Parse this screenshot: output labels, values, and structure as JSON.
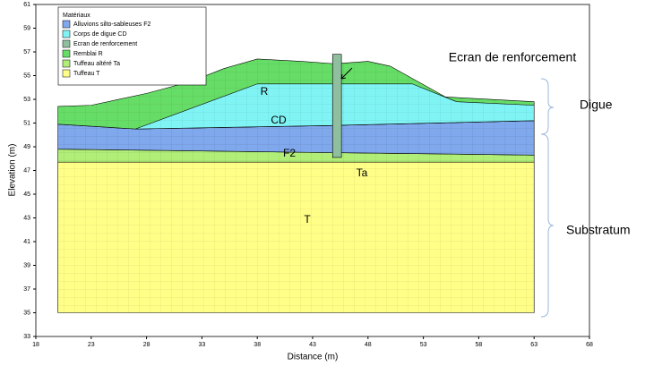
{
  "diagram": {
    "legend_title": "Matériaux",
    "legend": [
      {
        "label": "Alluvions silto-sableuses F2",
        "color": "#80a8ec"
      },
      {
        "label": "Corps de digue CD",
        "color": "#80f4f4"
      },
      {
        "label": "Ecran de renforcement",
        "color": "#8fbf9f"
      },
      {
        "label": "Remblai R",
        "color": "#66dd66"
      },
      {
        "label": "Tuffeau altéré Ta",
        "color": "#b0ee77"
      },
      {
        "label": "Tuffeau T",
        "color": "#ffff88"
      }
    ],
    "xlabel": "Distance (m)",
    "ylabel": "Elevation (m)",
    "xlim": [
      18,
      68
    ],
    "ylim": [
      33,
      61
    ],
    "xticks": [
      18,
      23,
      28,
      33,
      38,
      43,
      48,
      53,
      58,
      63,
      68
    ],
    "yticks": [
      33,
      35,
      37,
      39,
      41,
      43,
      45,
      47,
      49,
      51,
      53,
      55,
      57,
      59,
      61
    ],
    "layers": [
      {
        "legend": 5,
        "x": [
          20,
          63,
          63,
          20
        ],
        "y": [
          35,
          35,
          47.7,
          47.7
        ]
      },
      {
        "legend": 4,
        "x": [
          20,
          63,
          63,
          45,
          20
        ],
        "y": [
          47.7,
          47.7,
          48.3,
          48.5,
          48.8
        ]
      },
      {
        "legend": 0,
        "x": [
          20,
          45,
          63,
          63,
          45,
          27,
          20
        ],
        "y": [
          48.8,
          48.5,
          48.3,
          51.2,
          50.8,
          50.5,
          50.9
        ]
      },
      {
        "legend": 3,
        "x": [
          20,
          23,
          28,
          32,
          35,
          38,
          42,
          45,
          48,
          50,
          55,
          63,
          63,
          45,
          27,
          20
        ],
        "y": [
          52.4,
          52.5,
          53.5,
          54.5,
          55.6,
          56.4,
          56.2,
          56,
          56.2,
          55.8,
          53.2,
          52.8,
          51.2,
          50.8,
          50.5,
          50.9
        ]
      },
      {
        "legend": 1,
        "x": [
          27,
          38,
          52,
          56,
          63,
          63,
          45
        ],
        "y": [
          50.5,
          54.3,
          54.3,
          52.8,
          52.5,
          51.2,
          50.8
        ]
      },
      {
        "legend": 2,
        "x": [
          44.8,
          45.6,
          45.6,
          44.8
        ],
        "y": [
          48.1,
          48.1,
          56.8,
          56.8
        ]
      }
    ],
    "labels": {
      "R": "R",
      "CD": "CD",
      "F2": "F2",
      "Ta": "Ta",
      "T": "T"
    },
    "screen_label": "Ecran de renforcement",
    "zones": [
      "Digue",
      "Substratum"
    ]
  }
}
